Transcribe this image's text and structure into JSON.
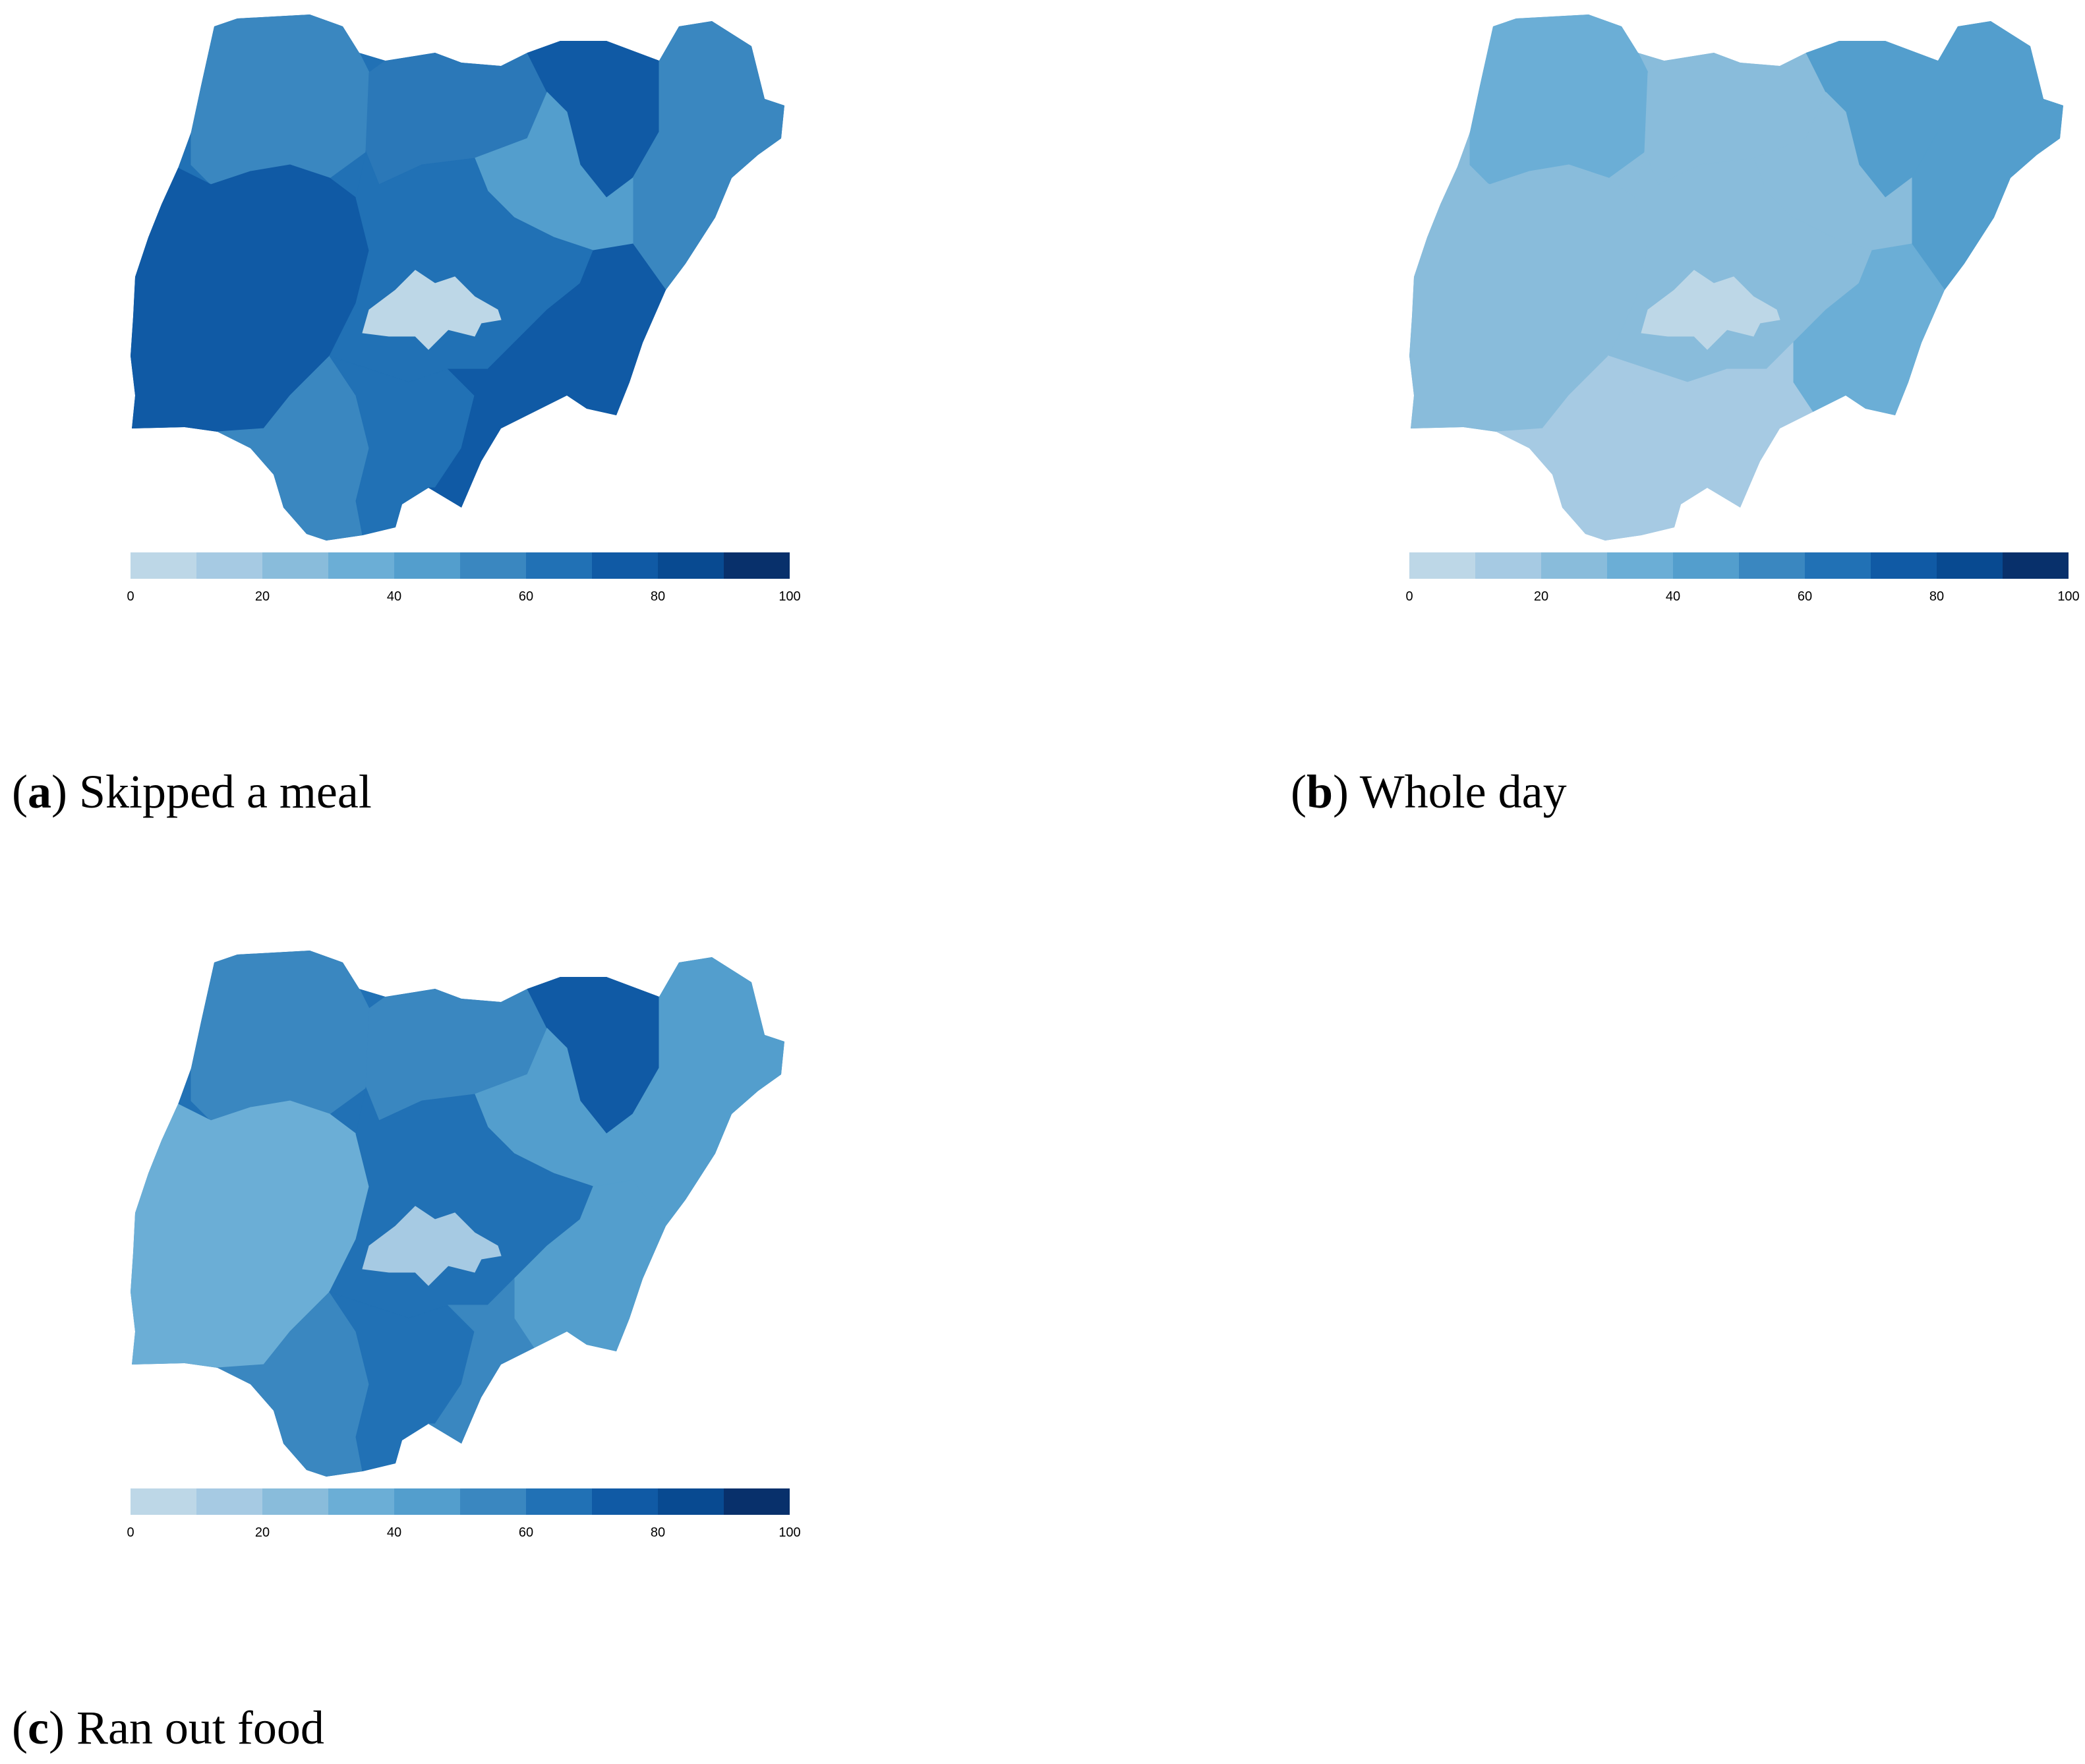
{
  "scale": {
    "colors": [
      "#bdd7e7",
      "#a6cae3",
      "#89bcdb",
      "#6baed6",
      "#539ecd",
      "#3a87c0",
      "#2171b5",
      "#105aa5",
      "#084a91",
      "#08306b"
    ],
    "ticks": [
      "0",
      "20",
      "40",
      "60",
      "80",
      "100"
    ],
    "range": [
      0,
      100
    ]
  },
  "panels": [
    {
      "id": "a",
      "letter": "a",
      "label": "Skipped a meal",
      "regions": {
        "north_west": "#3a87c0",
        "north_central_w": "#2b78b8",
        "north_east_top": "#105aa5",
        "north_east_side": "#3a87c0",
        "north_inner": "#539ecd",
        "west_band": "#105aa5",
        "middle_band": "#2171b5",
        "east_band": "#105aa5",
        "south_west": "#3a87c0",
        "south_central": "#2171b5",
        "south_east": "#105aa5",
        "fct": "#bdd7e7"
      }
    },
    {
      "id": "b",
      "letter": "b",
      "label": "Whole day",
      "regions": {
        "north_west": "#6baed6",
        "north_central_w": "#89bcdb",
        "north_east_top": "#539ecd",
        "north_east_side": "#539ecd",
        "north_inner": "#89bcdb",
        "west_band": "#89bcdb",
        "middle_band": "#89bcdb",
        "east_band": "#6baed6",
        "south_west": "#a6cae3",
        "south_central": "#a6cae3",
        "south_east": "#a6cae3",
        "fct": "#bdd7e7"
      }
    },
    {
      "id": "c",
      "letter": "c",
      "label": "Ran out food",
      "regions": {
        "north_west": "#3a87c0",
        "north_central_w": "#3a87c0",
        "north_east_top": "#105aa5",
        "north_east_side": "#539ecd",
        "north_inner": "#539ecd",
        "west_band": "#6baed6",
        "middle_band": "#2171b5",
        "east_band": "#539ecd",
        "south_west": "#3a87c0",
        "south_central": "#2171b5",
        "south_east": "#3a87c0",
        "fct": "#a6cae3"
      }
    }
  ]
}
